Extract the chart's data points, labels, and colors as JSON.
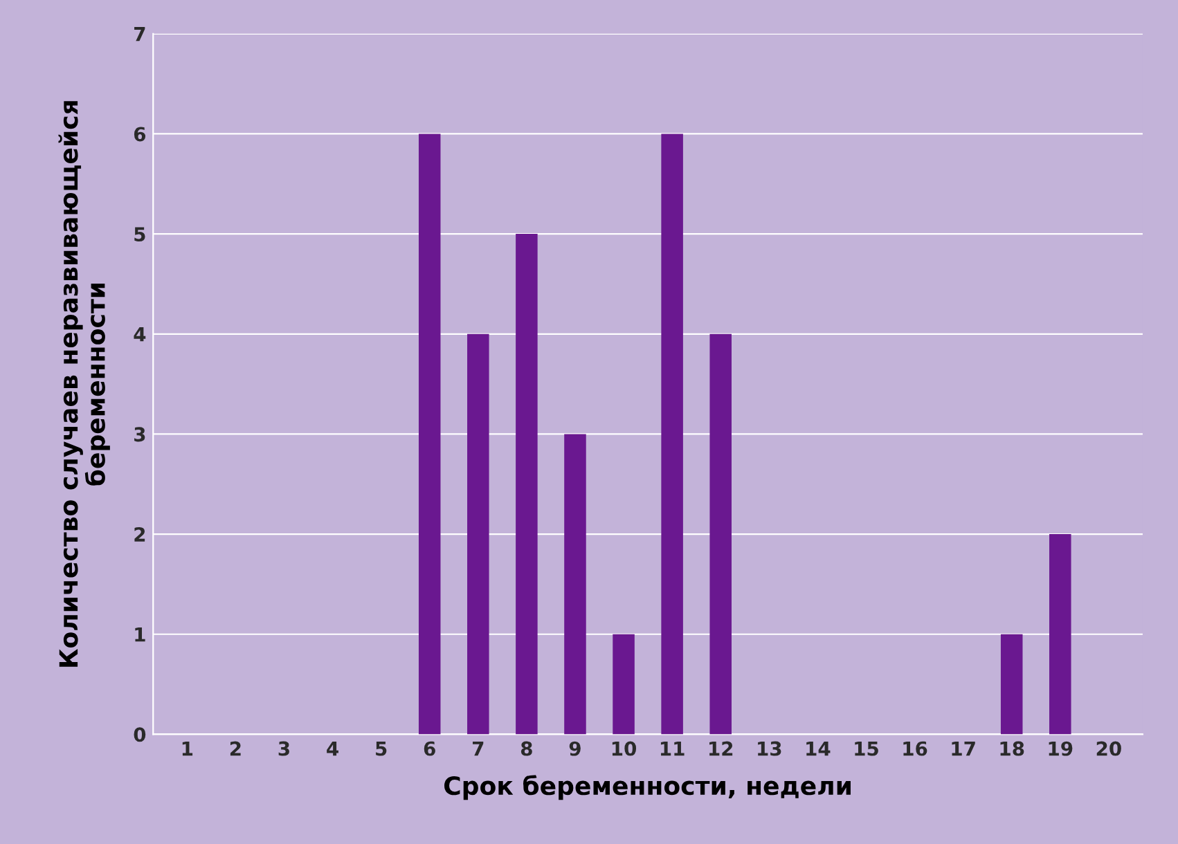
{
  "chart_data": {
    "type": "bar",
    "xlabel": "Срок беременности, недели",
    "ylabel": "Количество случаев неразвивающейся\nбеременности",
    "categories": [
      "1",
      "2",
      "3",
      "4",
      "5",
      "6",
      "7",
      "8",
      "9",
      "10",
      "11",
      "12",
      "13",
      "14",
      "15",
      "16",
      "17",
      "18",
      "19",
      "20"
    ],
    "values": [
      0,
      0,
      0,
      0,
      0,
      6,
      4,
      5,
      3,
      1,
      6,
      4,
      0,
      0,
      0,
      0,
      0,
      1,
      2,
      0
    ],
    "color": "#6a1890",
    "ylim": [
      0,
      7
    ],
    "yticks": [
      0,
      1,
      2,
      3,
      4,
      5,
      6,
      7
    ],
    "grid": "y",
    "legend": false
  }
}
